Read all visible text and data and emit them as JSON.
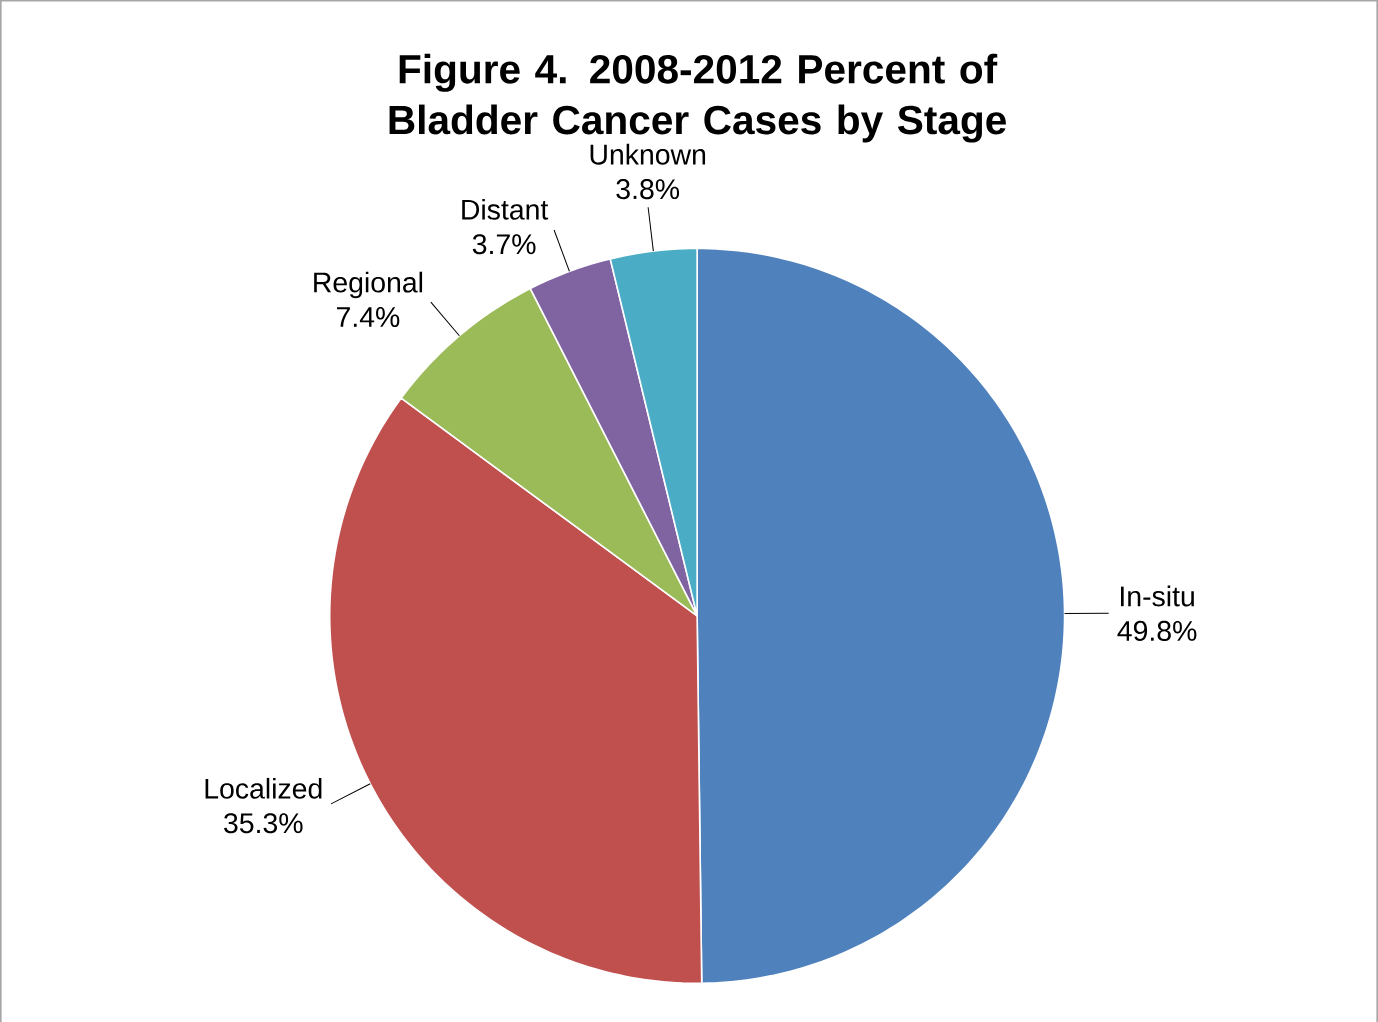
{
  "chart_data": {
    "type": "pie",
    "title": "Figure 4. 2008-2012 Percent of Bladder Cancer Cases by Stage",
    "categories": [
      "In-situ",
      "Localized",
      "Regional",
      "Distant",
      "Unknown"
    ],
    "values": [
      49.8,
      35.3,
      7.4,
      3.7,
      3.8
    ],
    "value_labels": [
      "49.8%",
      "35.3%",
      "7.4%",
      "3.7%",
      "3.8%"
    ],
    "colors": [
      "#4f81bd",
      "#c0504d",
      "#9bbb59",
      "#8064a2",
      "#4bacc6"
    ]
  }
}
